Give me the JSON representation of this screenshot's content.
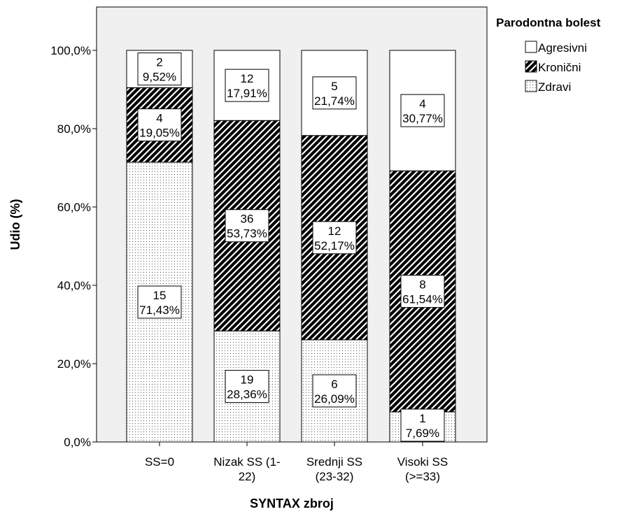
{
  "chart_data": {
    "type": "bar",
    "stacked": true,
    "percent_stacked": true,
    "xlabel": "SYNTAX zbroj",
    "ylabel": "Udio (%)",
    "ylim": [
      0,
      100
    ],
    "yticks": [
      "0,0%",
      "20,0%",
      "40,0%",
      "60,0%",
      "80,0%",
      "100,0%"
    ],
    "grid": false,
    "legend_title": "Parodontna bolest",
    "legend_position": "top-right, outside plot",
    "categories": [
      [
        "SS=0"
      ],
      [
        "Nizak SS (1-",
        "22)"
      ],
      [
        "Srednji SS",
        "(23-32)"
      ],
      [
        "Visoki SS",
        "(>=33)"
      ]
    ],
    "series": [
      {
        "name": "Zdravi",
        "pattern": "dotted",
        "counts": [
          15,
          19,
          6,
          1
        ],
        "values": [
          71.43,
          28.36,
          26.09,
          7.69
        ],
        "labels": [
          "71,43%",
          "28,36%",
          "26,09%",
          "7,69%"
        ]
      },
      {
        "name": "Kronični",
        "pattern": "diagonal-hatch",
        "counts": [
          4,
          36,
          12,
          8
        ],
        "values": [
          19.05,
          53.73,
          52.17,
          61.54
        ],
        "labels": [
          "19,05%",
          "53,73%",
          "52,17%",
          "61,54%"
        ]
      },
      {
        "name": "Agresivni",
        "pattern": "empty",
        "counts": [
          2,
          12,
          5,
          4
        ],
        "values": [
          9.52,
          17.91,
          21.74,
          30.77
        ],
        "labels": [
          "9,52%",
          "17,91%",
          "21,74%",
          "30,77%"
        ]
      }
    ],
    "legend_order": [
      "Agresivni",
      "Kronični",
      "Zdravi"
    ],
    "colors": {
      "plot_background": "#f0f0f0",
      "bar_fill": "#ffffff",
      "stroke": "#000000"
    }
  }
}
